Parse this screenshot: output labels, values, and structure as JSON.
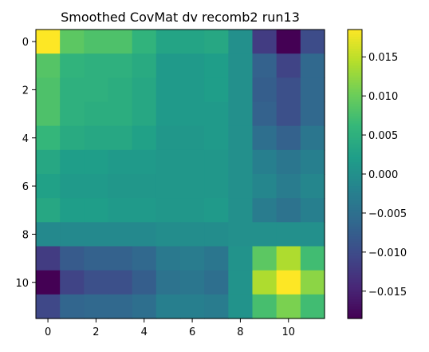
{
  "chart_data": {
    "type": "heatmap",
    "title": "Smoothed CovMat dv recomb2 run13",
    "xlabel": "",
    "ylabel": "",
    "x_ticks": [
      "0",
      "2",
      "4",
      "6",
      "8",
      "10"
    ],
    "y_ticks": [
      "0",
      "2",
      "4",
      "6",
      "8",
      "10"
    ],
    "colorbar_ticks": [
      "0.015",
      "0.010",
      "0.005",
      "0.000",
      "−0.005",
      "−0.010",
      "−0.015"
    ],
    "colorbar_tick_values": [
      0.015,
      0.01,
      0.005,
      0.0,
      -0.005,
      -0.01,
      -0.015
    ],
    "colormap": "viridis",
    "vmin": -0.0185,
    "vmax": 0.0185,
    "matrix": [
      [
        0.0185,
        0.009,
        0.008,
        0.008,
        0.0055,
        0.003,
        0.003,
        0.0035,
        0.0,
        -0.012,
        -0.0185,
        -0.01
      ],
      [
        0.0085,
        0.0055,
        0.005,
        0.005,
        0.004,
        0.0015,
        0.0015,
        0.002,
        0.0,
        -0.007,
        -0.011,
        -0.006
      ],
      [
        0.008,
        0.005,
        0.005,
        0.0045,
        0.0035,
        0.0015,
        0.0015,
        0.002,
        0.0,
        -0.0075,
        -0.0095,
        -0.006
      ],
      [
        0.008,
        0.005,
        0.0045,
        0.0045,
        0.0035,
        0.0015,
        0.0015,
        0.0015,
        0.0,
        -0.007,
        -0.0095,
        -0.006
      ],
      [
        0.006,
        0.004,
        0.0035,
        0.0035,
        0.0025,
        0.001,
        0.001,
        0.0015,
        0.0,
        -0.005,
        -0.007,
        -0.004
      ],
      [
        0.0035,
        0.002,
        0.002,
        0.0015,
        0.0015,
        0.001,
        0.001,
        0.001,
        0.0,
        -0.0025,
        -0.004,
        -0.0025
      ],
      [
        0.0025,
        0.0015,
        0.0015,
        0.001,
        0.001,
        0.001,
        0.001,
        0.001,
        0.0,
        -0.0015,
        -0.003,
        -0.0015
      ],
      [
        0.0035,
        0.002,
        0.002,
        0.0015,
        0.0015,
        0.001,
        0.001,
        0.0015,
        0.0,
        -0.003,
        -0.0045,
        -0.0025
      ],
      [
        -0.001,
        -0.001,
        -0.001,
        -0.001,
        -0.001,
        -0.0005,
        -0.0005,
        -0.0005,
        0.0,
        0.0,
        0.0,
        0.0
      ],
      [
        -0.012,
        -0.008,
        -0.007,
        -0.007,
        -0.006,
        -0.0035,
        -0.003,
        -0.004,
        0.0005,
        0.009,
        0.014,
        0.007
      ],
      [
        -0.0185,
        -0.011,
        -0.0095,
        -0.0095,
        -0.0075,
        -0.0045,
        -0.004,
        -0.005,
        0.0005,
        0.014,
        0.0185,
        0.012
      ],
      [
        -0.0105,
        -0.0065,
        -0.006,
        -0.006,
        -0.005,
        -0.0025,
        -0.0025,
        -0.003,
        0.0005,
        0.0075,
        0.011,
        0.007
      ]
    ]
  }
}
